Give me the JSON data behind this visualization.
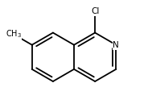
{
  "background_color": "#ffffff",
  "bond_color": "#000000",
  "text_color": "#000000",
  "bond_width": 1.3,
  "font_size_atom": 7.5,
  "scale": 0.28,
  "xlim": [
    -0.75,
    0.75
  ],
  "ylim": [
    -0.58,
    0.65
  ]
}
